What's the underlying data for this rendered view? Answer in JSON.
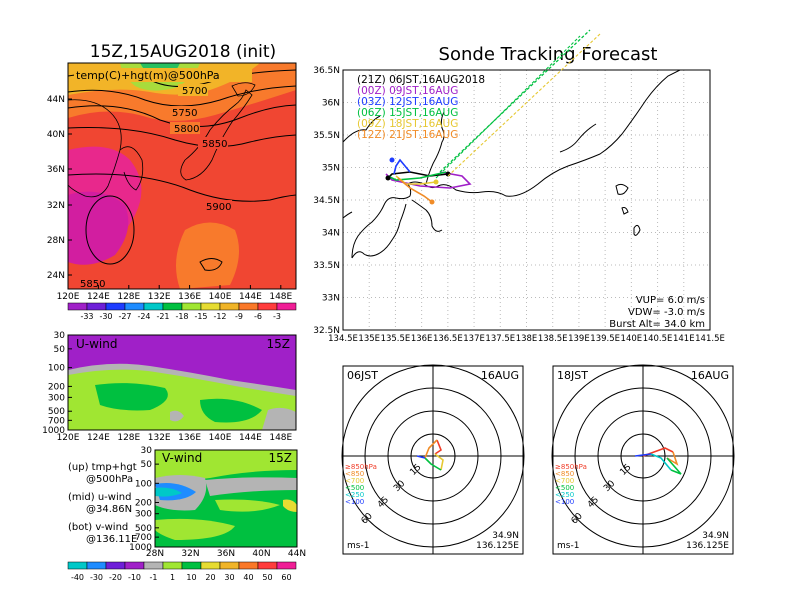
{
  "left_title": "15Z,15AUG2018 (init)",
  "right_title": "Sonde Tracking Forecast",
  "map500": {
    "label": "temp(C)+hgt(m)@500hPa",
    "contours": [
      "5700",
      "5750",
      "5800",
      "5850",
      "5900",
      "5850"
    ],
    "lat_ticks": [
      "44N",
      "40N",
      "36N",
      "32N",
      "28N",
      "24N"
    ],
    "lon_ticks": [
      "120E",
      "124E",
      "128E",
      "132E",
      "136E",
      "140E",
      "144E",
      "148E"
    ]
  },
  "temp_colorbar": {
    "labels": [
      "-33",
      "-30",
      "-27",
      "-24",
      "-21",
      "-18",
      "-15",
      "-12",
      "-9",
      "-6",
      "-3"
    ],
    "colors": [
      "#a020c8",
      "#6e1fd8",
      "#1e3cff",
      "#1e8cff",
      "#00c8c8",
      "#00c040",
      "#a0e632",
      "#e6dc32",
      "#f0b428",
      "#fa7828",
      "#ff3c3c",
      "#f01e96"
    ]
  },
  "uwind": {
    "label": "U-wind",
    "time": "15Z",
    "p_ticks": [
      "30",
      "50",
      "100",
      "200",
      "300",
      "500",
      "700",
      "1000"
    ],
    "lon_ticks": [
      "120E",
      "124E",
      "128E",
      "132E",
      "136E",
      "140E",
      "144E",
      "148E"
    ]
  },
  "vwind": {
    "label": "V-wind",
    "time": "15Z",
    "p_ticks": [
      "30",
      "50",
      "100",
      "200",
      "300",
      "500",
      "700",
      "1000"
    ],
    "lat_ticks": [
      "28N",
      "32N",
      "36N",
      "40N",
      "44N"
    ]
  },
  "legend_notes": [
    [
      "(up) tmp+hgt",
      "@500hPa"
    ],
    [
      "(mid) u-wind",
      "@34.86N"
    ],
    [
      "(bot) v-wind",
      "@136.11E"
    ]
  ],
  "wind_colorbar": {
    "labels": [
      "-40",
      "-30",
      "-20",
      "-10",
      "-1",
      "1",
      "10",
      "20",
      "30",
      "40",
      "50",
      "60"
    ],
    "colors": [
      "#00c8c8",
      "#1e8cff",
      "#6e1fd8",
      "#a020c8",
      "#b4b4b4",
      "#a0e632",
      "#00c040",
      "#e6dc32",
      "#f0b428",
      "#fa7828",
      "#ff3c3c",
      "#f01e96"
    ]
  },
  "track_map": {
    "x_ticks": [
      "134.5E",
      "135E",
      "135.5E",
      "136E",
      "136.5E",
      "137E",
      "137.5E",
      "138E",
      "138.5E",
      "139E",
      "139.5E",
      "140E",
      "140.5E",
      "141E",
      "141.5E"
    ],
    "y_ticks": [
      "36.5N",
      "36N",
      "35.5N",
      "35N",
      "34.5N",
      "34N",
      "33.5N",
      "33N",
      "32.5N"
    ],
    "launches": [
      {
        "label": "(21Z)  06JST,16AUG2018",
        "color": "#000000"
      },
      {
        "label": "(00Z)  09JST,16AUG",
        "color": "#a020c8"
      },
      {
        "label": "(03Z)  12JST,16AUG",
        "color": "#1e3cff"
      },
      {
        "label": "(06Z)  15JST,16AUG",
        "color": "#00c040"
      },
      {
        "label": "(09Z)  18JST,16AUG",
        "color": "#e6c832"
      },
      {
        "label": "(12Z)  21JST,16AUG",
        "color": "#f08c28"
      }
    ],
    "params": [
      "VUP=  6.0  m/s",
      "VDW= -3.0  m/s",
      "Burst Alt=  34.0  km"
    ]
  },
  "hodographs": [
    {
      "time": "06JST",
      "date": "16AUG",
      "lat": "34.9N",
      "lon": "136.125E",
      "unit": "ms-1",
      "ring_labels": [
        "15",
        "30",
        "45",
        "60"
      ]
    },
    {
      "time": "18JST",
      "date": "16AUG",
      "lat": "34.9N",
      "lon": "136.125E",
      "unit": "ms-1",
      "ring_labels": [
        "15",
        "30",
        "45",
        "60"
      ]
    }
  ],
  "hodo_legend": [
    {
      "label": "≥850hPa",
      "color": "#f03c28"
    },
    {
      "label": "<850",
      "color": "#f08c28"
    },
    {
      "label": "<700",
      "color": "#e6c832"
    },
    {
      "label": "<500",
      "color": "#00c040"
    },
    {
      "label": "<250",
      "color": "#00c8c8"
    },
    {
      "label": "<100",
      "color": "#1e3cff"
    }
  ],
  "chart_data": [
    {
      "type": "heatmap",
      "title": "15Z,15AUG2018 (init)",
      "subtitle": "temp(C)+hgt(m)@500hPa",
      "xlim": [
        120,
        150
      ],
      "ylim": [
        22,
        48
      ],
      "contour_levels": [
        5700,
        5750,
        5800,
        5850,
        5900
      ]
    },
    {
      "type": "heatmap",
      "title": "U-wind",
      "xlim": [
        120,
        150
      ],
      "ylim": [
        1000,
        30
      ]
    },
    {
      "type": "heatmap",
      "title": "V-wind",
      "xlim": [
        28,
        44
      ],
      "ylim": [
        1000,
        30
      ]
    },
    {
      "type": "line",
      "title": "Sonde Tracking Forecast",
      "xlim": [
        134.5,
        141.5
      ],
      "ylim": [
        32.5,
        36.5
      ]
    },
    {
      "type": "line",
      "title": "06JST 16AUG hodograph",
      "ring_values": [
        15,
        30,
        45,
        60
      ]
    },
    {
      "type": "line",
      "title": "18JST 16AUG hodograph",
      "ring_values": [
        15,
        30,
        45,
        60
      ]
    }
  ]
}
